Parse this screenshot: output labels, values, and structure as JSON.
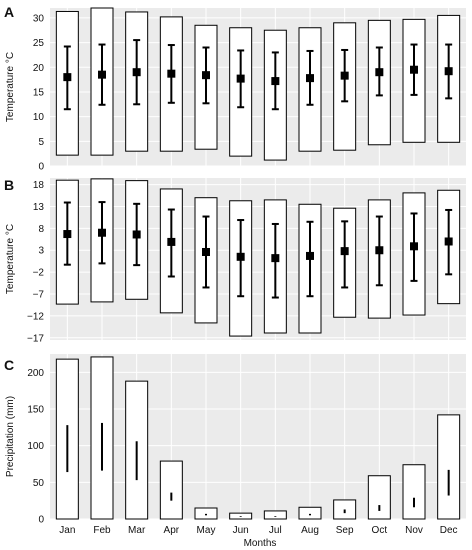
{
  "figure": {
    "x_axis_title": "Months"
  },
  "chart_data": [
    {
      "panel": "A",
      "type": "boxplot",
      "ylabel": "Temperature °C",
      "ylim": [
        0,
        32
      ],
      "yticks": [
        0,
        5,
        10,
        15,
        20,
        25,
        30
      ],
      "grid": true,
      "categories": [
        "Jan",
        "Feb",
        "Mar",
        "Apr",
        "May",
        "Jun",
        "Jul",
        "Aug",
        "Sep",
        "Oct",
        "Nov",
        "Dec"
      ],
      "range_min": [
        2.2,
        2.2,
        3.0,
        3.0,
        3.4,
        2.0,
        1.2,
        3.0,
        3.2,
        4.3,
        4.8,
        4.8
      ],
      "range_max": [
        31.3,
        32.0,
        31.2,
        30.2,
        28.5,
        28.0,
        27.5,
        28.0,
        29.0,
        29.5,
        29.7,
        30.5
      ],
      "mean": [
        18.0,
        18.5,
        19.0,
        18.7,
        18.4,
        17.7,
        17.2,
        17.8,
        18.3,
        19.0,
        19.5,
        19.2
      ],
      "sd_low": [
        11.5,
        12.4,
        12.5,
        12.8,
        12.7,
        11.9,
        11.5,
        12.4,
        13.1,
        14.3,
        14.4,
        13.7
      ],
      "sd_high": [
        24.2,
        24.6,
        25.5,
        24.5,
        24.0,
        23.4,
        23.0,
        23.3,
        23.5,
        24.0,
        24.6,
        24.6
      ]
    },
    {
      "panel": "B",
      "type": "boxplot",
      "ylabel": "Temperature °C",
      "ylim": [
        -17.5,
        19.5
      ],
      "yticks": [
        -17,
        -12,
        -7,
        -2,
        3,
        8,
        13,
        18
      ],
      "grid": true,
      "categories": [
        "Jan",
        "Feb",
        "Mar",
        "Apr",
        "May",
        "Jun",
        "Jul",
        "Aug",
        "Sep",
        "Oct",
        "Nov",
        "Dec"
      ],
      "range_min": [
        -9.3,
        -8.8,
        -8.2,
        -11.3,
        -13.6,
        -16.6,
        -15.9,
        -15.9,
        -12.3,
        -12.5,
        -11.8,
        -9.2
      ],
      "range_max": [
        19.0,
        19.3,
        18.9,
        17.0,
        15.0,
        14.3,
        14.5,
        13.5,
        12.6,
        14.5,
        16.1,
        16.7
      ],
      "mean": [
        6.7,
        7.0,
        6.6,
        4.9,
        2.6,
        1.5,
        1.2,
        1.7,
        2.8,
        3.0,
        3.9,
        5.0
      ],
      "sd_low": [
        -0.3,
        0.0,
        -0.4,
        -3.0,
        -5.5,
        -7.5,
        -7.8,
        -7.5,
        -5.5,
        -5.0,
        -4.0,
        -2.5
      ],
      "sd_high": [
        13.9,
        14.0,
        13.6,
        12.3,
        10.7,
        9.9,
        9.0,
        9.5,
        9.6,
        10.7,
        11.4,
        12.2
      ]
    },
    {
      "panel": "C",
      "type": "boxplot",
      "ylabel": "Precipitation (mm)",
      "ylim": [
        0,
        225
      ],
      "yticks": [
        0,
        50,
        100,
        150,
        200
      ],
      "grid": true,
      "xlabel": "Months",
      "categories": [
        "Jan",
        "Feb",
        "Mar",
        "Apr",
        "May",
        "Jun",
        "Jul",
        "Aug",
        "Sep",
        "Oct",
        "Nov",
        "Dec"
      ],
      "range_min": [
        0,
        0,
        0,
        0,
        0,
        0,
        0,
        0,
        0,
        0,
        0,
        0
      ],
      "range_max": [
        218,
        221,
        188,
        79,
        15,
        8,
        11,
        16,
        26,
        59,
        74,
        142
      ],
      "mean_bar_low": [
        64,
        66,
        53,
        25,
        5,
        3,
        3,
        5,
        8,
        11,
        16,
        32
      ],
      "mean_bar_high": [
        128,
        131,
        106,
        36,
        7,
        4,
        4,
        7,
        13,
        19,
        29,
        67
      ]
    }
  ]
}
